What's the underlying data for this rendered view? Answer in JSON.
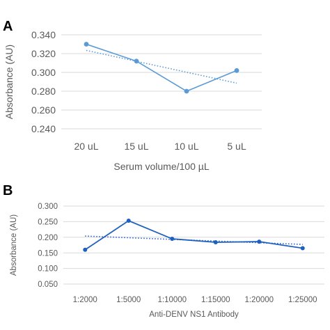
{
  "chart_data": [
    {
      "panel_label": "A",
      "type": "line",
      "categories": [
        "20 uL",
        "15 uL",
        "10 uL",
        "5 uL"
      ],
      "series": [
        {
          "values": [
            0.33,
            0.312,
            0.28,
            0.302
          ],
          "color": "#5b9bd5"
        }
      ],
      "trendline": {
        "style": "dotted",
        "kind": "linear",
        "color": "#5b9bd5"
      },
      "xlabel": "Serum volume/100 µL",
      "ylabel": "Absorbance (AU)",
      "ylim": [
        0.24,
        0.34
      ],
      "yticks": [
        "0.240",
        "0.260",
        "0.280",
        "0.300",
        "0.320",
        "0.340"
      ],
      "grid": true
    },
    {
      "panel_label": "B",
      "type": "line",
      "categories": [
        "1:2000",
        "1:5000",
        "1:10000",
        "1:15000",
        "1:20000",
        "1:25000"
      ],
      "series": [
        {
          "values": [
            0.16,
            0.253,
            0.195,
            0.184,
            0.186,
            0.165
          ],
          "color": "#1f5fbf"
        }
      ],
      "trendline": {
        "style": "dotted",
        "kind": "linear",
        "color": "#1f5fbf"
      },
      "xlabel": "Anti-DENV NS1 Antibody",
      "ylabel": "Absorbance (AU)",
      "ylim": [
        0.05,
        0.3
      ],
      "yticks": [
        "0.050",
        "0.100",
        "0.150",
        "0.200",
        "0.250",
        "0.300"
      ],
      "grid": true
    }
  ]
}
